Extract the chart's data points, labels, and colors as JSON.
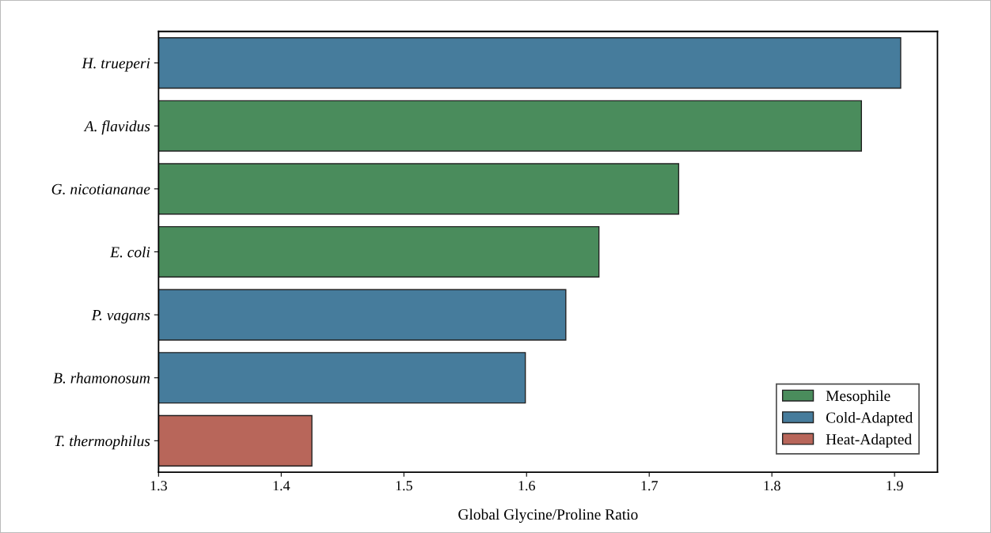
{
  "chart_data": {
    "type": "bar",
    "orientation": "horizontal",
    "stacked": false,
    "xlabel": "Global Glycine/Proline Ratio",
    "categories": [
      "H. trueperi",
      "A. flavidus",
      "G. nicotiananae",
      "E. coli",
      "P. vagans",
      "B. rhamonosum",
      "T. thermophilus"
    ],
    "series": [
      {
        "name": "Mesophile",
        "color": "#4a8c5c",
        "values": [
          null,
          1.873,
          1.724,
          1.659,
          null,
          null,
          null
        ]
      },
      {
        "name": "Cold-Adapted",
        "color": "#467c9c",
        "values": [
          1.905,
          null,
          null,
          null,
          1.632,
          1.599,
          null
        ]
      },
      {
        "name": "Heat-Adapted",
        "color": "#b8665a",
        "values": [
          null,
          null,
          null,
          null,
          null,
          null,
          1.425
        ]
      }
    ],
    "xlim": [
      1.3,
      1.935
    ],
    "xticks": [
      1.3,
      1.4,
      1.5,
      1.6,
      1.7,
      1.8,
      1.9
    ],
    "grid": false,
    "legend": "bottom right"
  }
}
